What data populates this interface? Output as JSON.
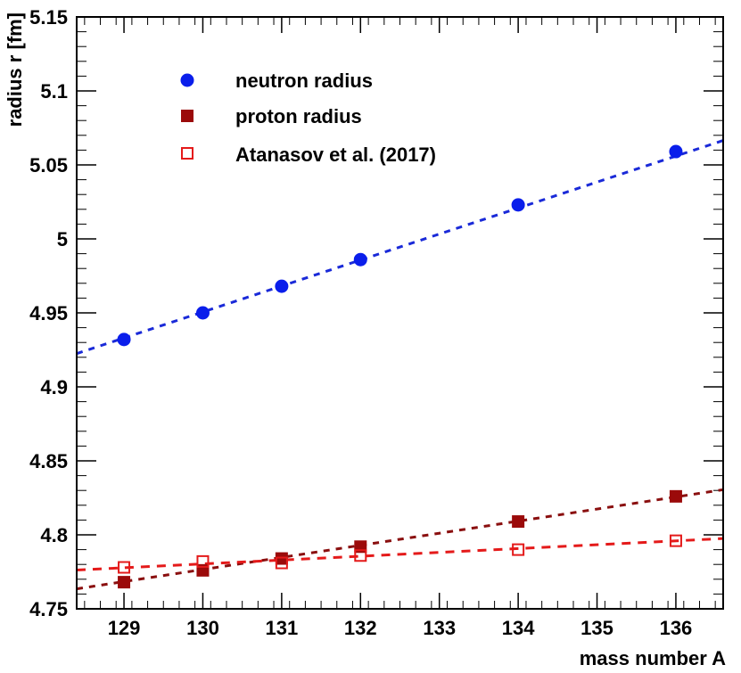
{
  "chart_data": {
    "type": "scatter",
    "title": "",
    "xlabel": "mass number A",
    "ylabel": "radius r [fm]",
    "xlim": [
      128.4,
      136.6
    ],
    "ylim": [
      4.75,
      5.15
    ],
    "x_ticks": [
      129,
      130,
      131,
      132,
      133,
      134,
      135,
      136
    ],
    "x_tick_labels": [
      "129",
      "130",
      "131",
      "132",
      "133",
      "134",
      "135",
      "136"
    ],
    "y_ticks": [
      4.75,
      4.8,
      4.85,
      4.9,
      4.95,
      5.0,
      5.05,
      5.1,
      5.15
    ],
    "y_tick_labels": [
      "4.75",
      "4.8",
      "4.85",
      "4.9",
      "4.95",
      "5",
      "5.05",
      "5.1",
      "5.15"
    ],
    "legend_position": "top-left",
    "series": [
      {
        "name": "neutron radius",
        "marker": "filled-circle",
        "color": "#0a1eeb",
        "x": [
          129,
          130,
          131,
          132,
          134,
          136
        ],
        "y": [
          4.932,
          4.95,
          4.968,
          4.986,
          5.023,
          5.059
        ],
        "fit": {
          "x": [
            128.4,
            136.6
          ],
          "y": [
            4.9225,
            5.0665
          ],
          "color": "#1a2ad8"
        }
      },
      {
        "name": "proton radius",
        "marker": "filled-square",
        "color": "#9b0a0a",
        "x": [
          129,
          130,
          131,
          132,
          134,
          136
        ],
        "y": [
          4.768,
          4.776,
          4.784,
          4.792,
          4.809,
          4.826
        ],
        "fit": {
          "x": [
            128.4,
            136.6
          ],
          "y": [
            4.7635,
            4.8305
          ],
          "color": "#8a0f0f"
        }
      },
      {
        "name": "Atanasov et al. (2017)",
        "marker": "open-square",
        "color": "#e41a1a",
        "x": [
          129,
          130,
          131,
          132,
          134,
          136
        ],
        "y": [
          4.778,
          4.782,
          4.781,
          4.786,
          4.79,
          4.796
        ],
        "fit": {
          "x": [
            128.4,
            136.6
          ],
          "y": [
            4.7762,
            4.7975
          ],
          "color": "#e41a1a"
        }
      }
    ]
  }
}
